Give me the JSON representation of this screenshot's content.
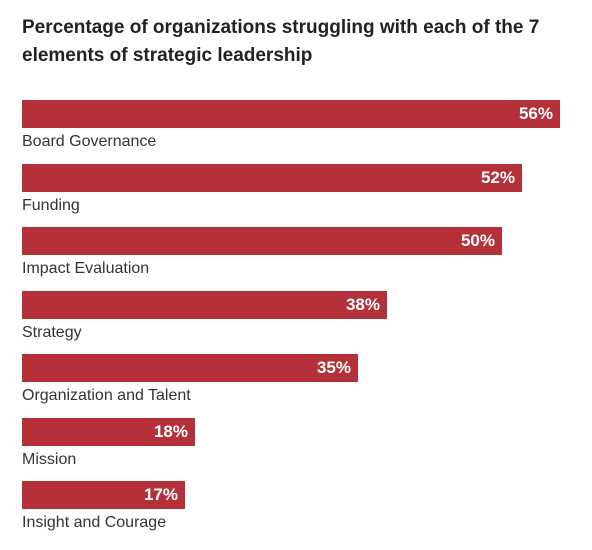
{
  "chart_data": {
    "type": "bar",
    "orientation": "horizontal",
    "title": "Percentage of organizations struggling with each of the 7 elements of strategic leadership",
    "categories": [
      "Board Governance",
      "Funding",
      "Impact Evaluation",
      "Strategy",
      "Organization and Talent",
      "Mission",
      "Insight and Courage"
    ],
    "values": [
      56,
      52,
      50,
      38,
      35,
      18,
      17
    ],
    "value_labels": [
      "56%",
      "52%",
      "50%",
      "38%",
      "35%",
      "18%",
      "17%"
    ],
    "unit": "%",
    "xlim": [
      0,
      56
    ],
    "grid": false,
    "bar_color": "#b5313a",
    "value_label_color": "#ffffff"
  }
}
